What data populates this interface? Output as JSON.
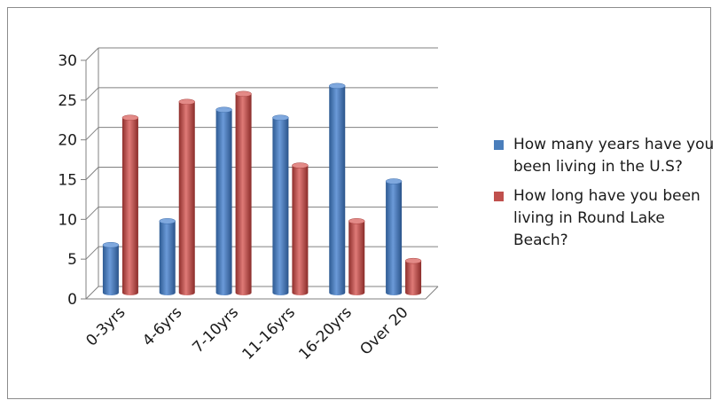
{
  "chart_data": {
    "type": "bar",
    "categories": [
      "0-3yrs",
      "4-6yrs",
      "7-10yrs",
      "11-16yrs",
      "16-20yrs",
      "Over 20"
    ],
    "series": [
      {
        "name": "How many years have you been living in the U.S?",
        "values": [
          6,
          9,
          23,
          22,
          26,
          14
        ],
        "color": "#4a7ebb"
      },
      {
        "name": "How long have you been living in Round Lake Beach?",
        "values": [
          22,
          24,
          25,
          16,
          9,
          4
        ],
        "color": "#c0504d"
      }
    ],
    "yticks": [
      0,
      5,
      10,
      15,
      20,
      25,
      30
    ],
    "ylim": [
      0,
      30
    ],
    "grid": true,
    "legend_position": "right",
    "style": "3d-cylinder"
  }
}
